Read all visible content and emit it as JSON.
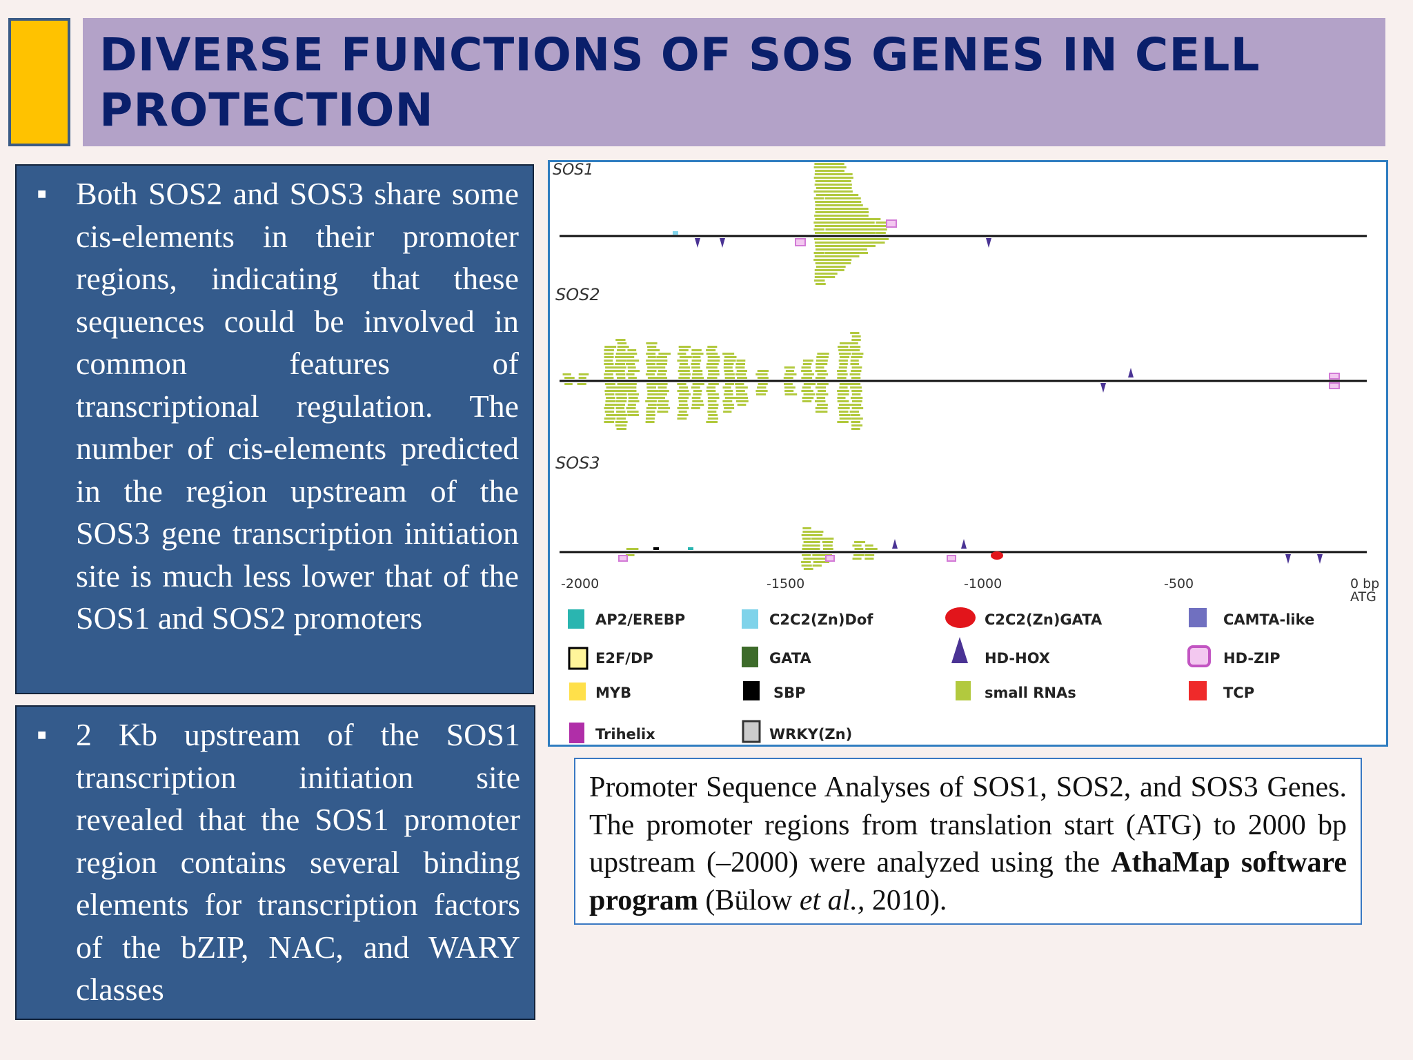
{
  "title": "DIVERSE FUNCTIONS OF SOS GENES IN CELL PROTECTION",
  "bullets": [
    {
      "marker": "■",
      "text": "Both SOS2 and SOS3 share some cis-elements in their promoter regions, indicating that these sequences could be involved in common features of transcriptional regulation. The number of cis-elements predicted in the region upstream of the SOS3 gene transcription initiation site is much less lower that of the SOS1 and SOS2 promoters"
    },
    {
      "marker": "■",
      "text": "2 Kb upstream of the SOS1 transcription initiation site revealed that the SOS1 promoter region contains several binding elements for transcription factors of the bZIP, NAC, and WARY classes"
    }
  ],
  "figure": {
    "tracks": [
      {
        "label": "SOS1"
      },
      {
        "label": "SOS2"
      },
      {
        "label": "SOS3"
      }
    ],
    "axis_ticks": [
      "-2000",
      "-1500",
      "-1000",
      "-500",
      "0 bp",
      "ATG"
    ],
    "legend": [
      {
        "name": "AP2/EREBP",
        "color": "#2ab5b0",
        "shape": "square"
      },
      {
        "name": "C2C2(Zn)Dof",
        "color": "#7fd3ea",
        "shape": "square"
      },
      {
        "name": "C2C2(Zn)GATA",
        "color": "#e2151b",
        "shape": "ellipse"
      },
      {
        "name": "CAMTA-like",
        "color": "#7070c0",
        "shape": "square"
      },
      {
        "name": "E2F/DP",
        "color": "#fff59a",
        "shape": "outline-square"
      },
      {
        "name": "GATA",
        "color": "#3d6b2a",
        "shape": "square"
      },
      {
        "name": "HD-HOX",
        "color": "#4a3394",
        "shape": "triangle"
      },
      {
        "name": "HD-ZIP",
        "color": "#d27ad6",
        "shape": "outline-rounded"
      },
      {
        "name": "MYB",
        "color": "#ffe04a",
        "shape": "square"
      },
      {
        "name": "SBP",
        "color": "#000000",
        "shape": "square"
      },
      {
        "name": "small RNAs",
        "color": "#b2c93e",
        "shape": "square"
      },
      {
        "name": "TCP",
        "color": "#ef2a2a",
        "shape": "square"
      },
      {
        "name": "Trihelix",
        "color": "#b02ea8",
        "shape": "square"
      },
      {
        "name": "WRKY(Zn)",
        "color": "#cccccc",
        "shape": "outline-square"
      }
    ]
  },
  "caption": {
    "part1": "Promoter Sequence Analyses of SOS1, SOS2, and SOS3 Genes. The promoter regions from translation start (ATG) to 2000 bp upstream (–2000) were analyzed using the ",
    "bold": "AthaMap software program",
    "part2": " (Bülow ",
    "italic": "et al.,",
    "part3": " 2010)."
  }
}
